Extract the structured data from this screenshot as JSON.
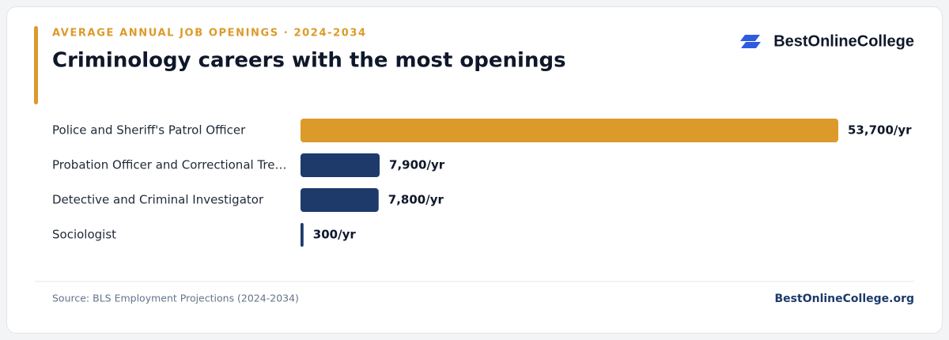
{
  "chart_data": {
    "type": "hbar",
    "subtitle": "AVERAGE ANNUAL JOB OPENINGS · 2024-2034",
    "title": "Criminology careers with the most openings",
    "categories": [
      "Police and Sheriff's Patrol Officer",
      "Probation Officer and Correctional Tre…",
      "Detective and Criminal Investigator",
      "Sociologist"
    ],
    "values": [
      53700,
      7900,
      7800,
      300
    ],
    "value_labels": [
      "53,700/yr",
      "7,900/yr",
      "7,800/yr",
      "300/yr"
    ],
    "colors": [
      "#dc9a2a",
      "#1e3a6b",
      "#1e3a6b",
      "#1e3a6b"
    ]
  },
  "brand": {
    "logo": "BestOnlineCollege",
    "url": "BestOnlineCollege.org"
  },
  "source": "Source: BLS Employment Projections (2024-2034)"
}
